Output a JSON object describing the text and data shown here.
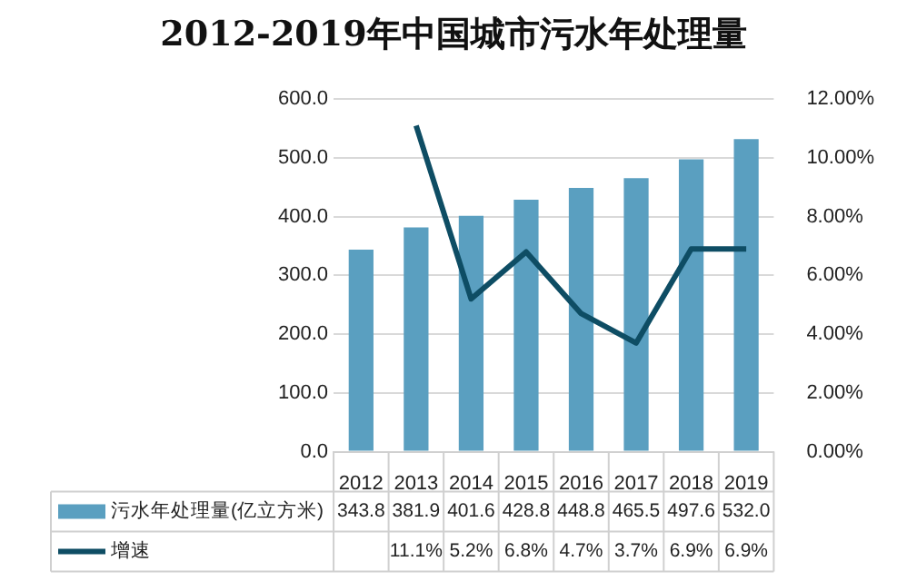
{
  "chart_data": {
    "type": "bar",
    "title": "2012-2019年中国城市污水年处理量",
    "categories": [
      "2012",
      "2013",
      "2014",
      "2015",
      "2016",
      "2017",
      "2018",
      "2019"
    ],
    "series": [
      {
        "name": "污水年处理量(亿立方米)",
        "color": "#5a9fc0",
        "values": [
          343.8,
          381.9,
          401.6,
          428.8,
          448.8,
          465.5,
          497.6,
          532.0
        ],
        "value_labels": [
          "343.8",
          "381.9",
          "401.6",
          "428.8",
          "448.8",
          "465.5",
          "497.6",
          "532.0"
        ]
      },
      {
        "name": "增速",
        "type": "line",
        "axis": "y2",
        "color": "#0e4d64",
        "values": [
          null,
          11.1,
          5.2,
          6.8,
          4.7,
          3.7,
          6.9,
          6.9
        ],
        "value_labels": [
          null,
          "11.1%",
          "5.2%",
          "6.8%",
          "4.7%",
          "3.7%",
          "6.9%",
          "6.9%"
        ]
      }
    ],
    "ylim": [
      0,
      600
    ],
    "yticks": [
      {
        "value": 0,
        "label": "0.0"
      },
      {
        "value": 100,
        "label": "100.0"
      },
      {
        "value": 200,
        "label": "200.0"
      },
      {
        "value": 300,
        "label": "300.0"
      },
      {
        "value": 400,
        "label": "400.0"
      },
      {
        "value": 500,
        "label": "500.0"
      },
      {
        "value": 600,
        "label": "600.0"
      }
    ],
    "y2lim": [
      0,
      12
    ],
    "y2ticks": [
      {
        "value": 0,
        "label": "0.00%"
      },
      {
        "value": 2,
        "label": "2.00%"
      },
      {
        "value": 4,
        "label": "4.00%"
      },
      {
        "value": 6,
        "label": "6.00%"
      },
      {
        "value": 8,
        "label": "8.00%"
      },
      {
        "value": 10,
        "label": "10.00%"
      },
      {
        "value": 12,
        "label": "12.00%"
      }
    ],
    "grid": "y",
    "legend": "bottom",
    "marker": "none",
    "line_style": "solid"
  }
}
